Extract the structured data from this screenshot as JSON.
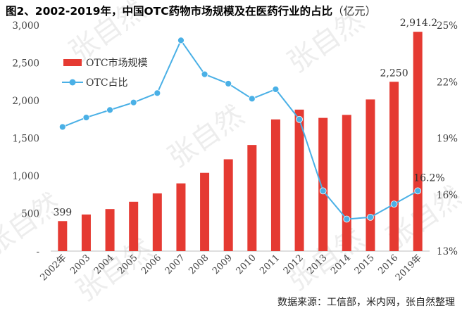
{
  "title": {
    "main": "图2、2002-2019年，中国OTC药物市场规模及在医药行业的占比",
    "unit": "（亿元）"
  },
  "source": "数据来源：工信部，米内网，张自然整理",
  "watermark": "张自然",
  "chart_data": {
    "type": "bar",
    "categories": [
      "2002年",
      "2003",
      "2004",
      "2005",
      "2006",
      "2007",
      "2008",
      "2009",
      "2010",
      "2011",
      "2012",
      "2013",
      "2014",
      "2015",
      "2016",
      "2019年"
    ],
    "series": [
      {
        "name": "OTC市场规模",
        "type": "bar",
        "axis": "left",
        "color": "#e53a32",
        "values": [
          399,
          486,
          559,
          656,
          767,
          900,
          1040,
          1220,
          1410,
          1750,
          1880,
          1770,
          1810,
          2015,
          2250,
          2914.2
        ]
      },
      {
        "name": "OTC占比",
        "type": "line",
        "axis": "right",
        "color": "#4ab0e6",
        "values": [
          19.6,
          20.1,
          20.5,
          20.9,
          21.4,
          24.2,
          22.4,
          21.9,
          21.1,
          21.6,
          20.0,
          16.2,
          14.7,
          14.8,
          15.5,
          16.2
        ]
      }
    ],
    "data_labels": [
      {
        "series": 0,
        "index": 0,
        "text": "399"
      },
      {
        "series": 0,
        "index": 14,
        "text": "2,250"
      },
      {
        "series": 0,
        "index": 15,
        "text": "2,914.2"
      },
      {
        "series": 1,
        "index": 15,
        "text": "16.2%"
      }
    ],
    "y_left": {
      "min": 0,
      "max": 3000,
      "ticks": [
        0,
        500,
        1000,
        1500,
        2000,
        2500,
        3000
      ],
      "tick_labels": [
        "-",
        "500",
        "1,000",
        "1,500",
        "2,000",
        "2,500",
        "3,000"
      ]
    },
    "y_right": {
      "min": 13,
      "max": 25,
      "ticks": [
        13,
        16,
        19,
        22,
        25
      ],
      "tick_labels": [
        "13%",
        "16%",
        "19%",
        "22%",
        "25%"
      ]
    },
    "legend": {
      "position": "top-left",
      "items": [
        {
          "label": "OTC市场规模",
          "kind": "bar"
        },
        {
          "label": "OTC占比",
          "kind": "line"
        }
      ]
    },
    "grid": false
  }
}
